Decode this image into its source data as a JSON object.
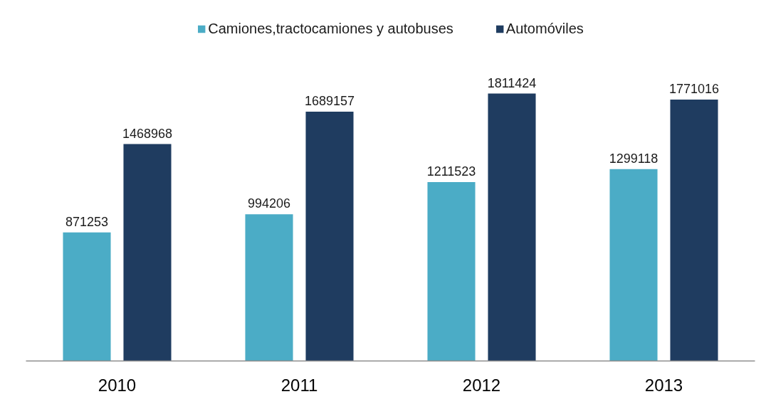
{
  "chart_data": {
    "type": "bar",
    "categories": [
      "2010",
      "2011",
      "2012",
      "2013"
    ],
    "series": [
      {
        "name": "Camiones,tractocamiones y autobuses",
        "color": "#4bacc6",
        "values": [
          871253,
          994206,
          1211523,
          1299118
        ]
      },
      {
        "name": "Automóviles",
        "color": "#1f3c60",
        "values": [
          1468968,
          1689157,
          1811424,
          1771016
        ]
      }
    ],
    "data_labels": true,
    "legend": "top",
    "tick_labels": "x"
  }
}
